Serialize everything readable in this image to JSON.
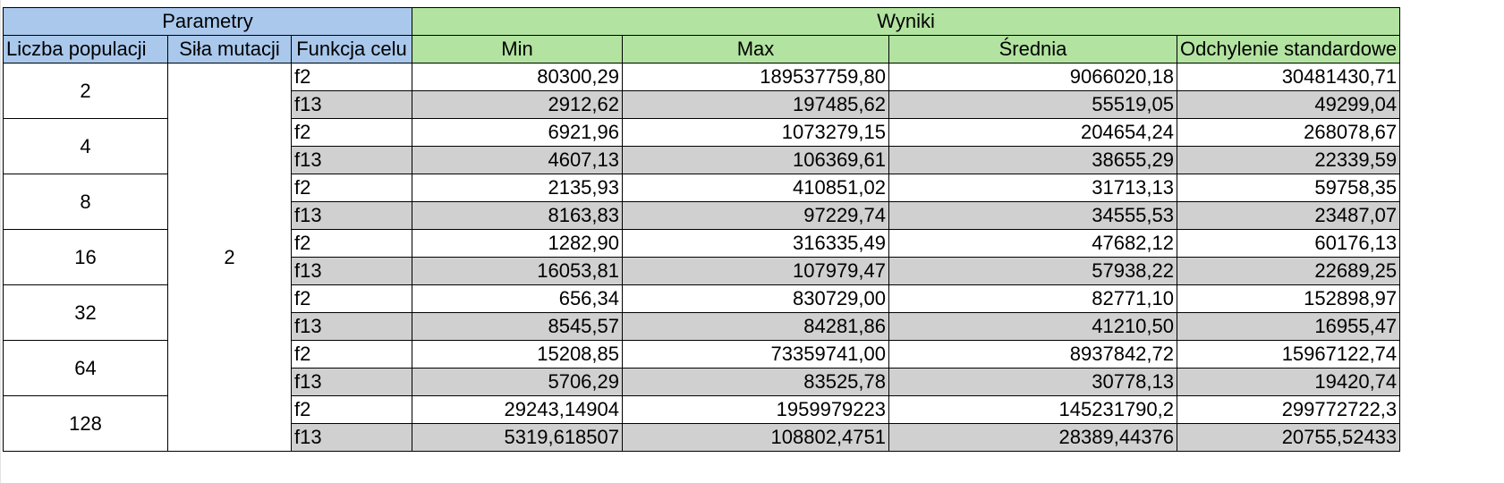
{
  "header": {
    "group_params": "Parametry",
    "group_results": "Wyniki",
    "col_population": "Liczba populacji",
    "col_mutation": "Siła mutacji",
    "col_function": "Funkcja celu",
    "col_min": "Min",
    "col_max": "Max",
    "col_mean": "Średnia",
    "col_std": "Odchylenie standardowe"
  },
  "mutation_strength": "2",
  "groups": [
    {
      "population": "2",
      "rows": [
        {
          "fn": "f2",
          "min": "80300,29",
          "max": "189537759,80",
          "mean": "9066020,18",
          "std": "30481430,71"
        },
        {
          "fn": "f13",
          "min": "2912,62",
          "max": "197485,62",
          "mean": "55519,05",
          "std": "49299,04"
        }
      ]
    },
    {
      "population": "4",
      "rows": [
        {
          "fn": "f2",
          "min": "6921,96",
          "max": "1073279,15",
          "mean": "204654,24",
          "std": "268078,67"
        },
        {
          "fn": "f13",
          "min": "4607,13",
          "max": "106369,61",
          "mean": "38655,29",
          "std": "22339,59"
        }
      ]
    },
    {
      "population": "8",
      "rows": [
        {
          "fn": "f2",
          "min": "2135,93",
          "max": "410851,02",
          "mean": "31713,13",
          "std": "59758,35"
        },
        {
          "fn": "f13",
          "min": "8163,83",
          "max": "97229,74",
          "mean": "34555,53",
          "std": "23487,07"
        }
      ]
    },
    {
      "population": "16",
      "rows": [
        {
          "fn": "f2",
          "min": "1282,90",
          "max": "316335,49",
          "mean": "47682,12",
          "std": "60176,13"
        },
        {
          "fn": "f13",
          "min": "16053,81",
          "max": "107979,47",
          "mean": "57938,22",
          "std": "22689,25"
        }
      ]
    },
    {
      "population": "32",
      "rows": [
        {
          "fn": "f2",
          "min": "656,34",
          "max": "830729,00",
          "mean": "82771,10",
          "std": "152898,97"
        },
        {
          "fn": "f13",
          "min": "8545,57",
          "max": "84281,86",
          "mean": "41210,50",
          "std": "16955,47"
        }
      ]
    },
    {
      "population": "64",
      "rows": [
        {
          "fn": "f2",
          "min": "15208,85",
          "max": "73359741,00",
          "mean": "8937842,72",
          "std": "15967122,74"
        },
        {
          "fn": "f13",
          "min": "5706,29",
          "max": "83525,78",
          "mean": "30778,13",
          "std": "19420,74"
        }
      ]
    },
    {
      "population": "128",
      "rows": [
        {
          "fn": "f2",
          "min": "29243,14904",
          "max": "1959979223",
          "mean": "145231790,2",
          "std": "299772722,3"
        },
        {
          "fn": "f13",
          "min": "5319,618507",
          "max": "108802,4751",
          "mean": "28389,44376",
          "std": "20755,52433"
        }
      ]
    }
  ],
  "colors": {
    "params_header": "#a9c8ec",
    "results_header": "#b2e3a0",
    "shaded_row": "#d0d0d0"
  }
}
